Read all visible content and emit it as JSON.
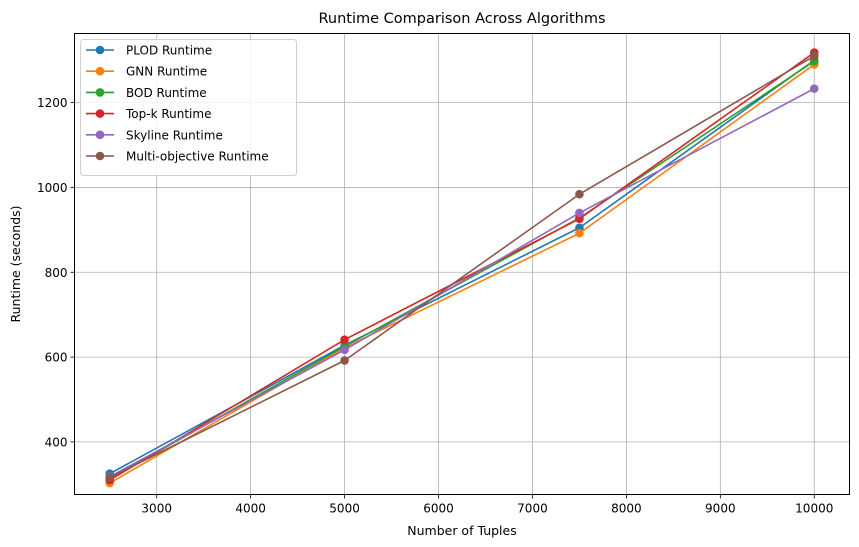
{
  "chart_data": {
    "type": "line",
    "title": "Runtime Comparison Across Algorithms",
    "xlabel": "Number of Tuples",
    "ylabel": "Runtime (seconds)",
    "x": [
      2500,
      5000,
      7500,
      10000
    ],
    "xlim": [
      2125,
      10375
    ],
    "ylim": [
      276,
      1363
    ],
    "xticks": [
      3000,
      4000,
      5000,
      6000,
      7000,
      8000,
      9000,
      10000
    ],
    "yticks": [
      400,
      600,
      800,
      1000,
      1200
    ],
    "grid": true,
    "legend_position": "top-left",
    "series": [
      {
        "name": "PLOD Runtime",
        "color": "#1f77b4",
        "values": [
          325,
          628,
          905,
          1300
        ]
      },
      {
        "name": "GNN Runtime",
        "color": "#ff7f0e",
        "values": [
          303,
          622,
          892,
          1290
        ]
      },
      {
        "name": "BOD Runtime",
        "color": "#2ca02c",
        "values": [
          313,
          625,
          928,
          1298
        ]
      },
      {
        "name": "Top-k Runtime",
        "color": "#d62728",
        "values": [
          310,
          641,
          926,
          1318
        ]
      },
      {
        "name": "Skyline Runtime",
        "color": "#9467bd",
        "values": [
          318,
          617,
          940,
          1233
        ]
      },
      {
        "name": "Multi-objective Runtime",
        "color": "#8c564b",
        "values": [
          316,
          592,
          984,
          1310
        ]
      }
    ]
  }
}
